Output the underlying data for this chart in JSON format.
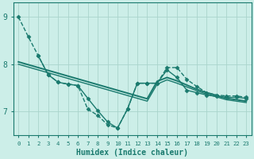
{
  "background_color": "#cceee8",
  "grid_color": "#aad4cc",
  "line_color": "#1a7a6e",
  "xlabel": "Humidex (Indice chaleur)",
  "xlim": [
    -0.5,
    23.5
  ],
  "ylim": [
    6.5,
    9.3
  ],
  "yticks": [
    7,
    8,
    9
  ],
  "xticks": [
    0,
    1,
    2,
    3,
    4,
    5,
    6,
    7,
    8,
    9,
    10,
    11,
    12,
    13,
    14,
    15,
    16,
    17,
    18,
    19,
    20,
    21,
    22,
    23
  ],
  "series": [
    {
      "x": [
        0,
        1,
        2,
        3,
        4,
        5,
        6,
        7,
        8,
        9,
        10,
        11,
        12,
        13,
        14,
        15,
        16,
        17,
        18,
        19,
        20,
        21,
        22,
        23
      ],
      "y": [
        9.0,
        8.58,
        8.18,
        7.78,
        7.62,
        7.58,
        7.55,
        7.05,
        6.92,
        6.72,
        6.65,
        7.05,
        7.6,
        7.6,
        7.6,
        7.93,
        7.93,
        7.68,
        7.53,
        7.4,
        7.35,
        7.33,
        7.33,
        7.3
      ],
      "marker": "D",
      "markersize": 2.5,
      "linewidth": 1.0,
      "linestyle": "--",
      "zorder": 4
    },
    {
      "x": [
        2,
        3,
        4,
        5,
        6,
        7,
        8,
        9,
        10,
        11,
        12,
        13,
        14,
        15,
        16,
        17,
        18,
        19,
        20,
        21,
        22,
        23
      ],
      "y": [
        8.18,
        7.78,
        7.62,
        7.58,
        7.55,
        7.28,
        7.02,
        6.78,
        6.65,
        7.05,
        7.6,
        7.6,
        7.6,
        7.88,
        7.72,
        7.45,
        7.4,
        7.35,
        7.32,
        7.3,
        7.3,
        7.28
      ],
      "marker": "D",
      "markersize": 2.5,
      "linewidth": 1.0,
      "linestyle": "-",
      "zorder": 4
    },
    {
      "x": [
        0,
        1,
        2,
        3,
        4,
        5,
        6,
        7,
        8,
        9,
        10,
        11,
        12,
        13,
        14,
        15,
        16,
        17,
        18,
        19,
        20,
        21,
        22,
        23
      ],
      "y": [
        8.05,
        7.99,
        7.93,
        7.87,
        7.81,
        7.75,
        7.69,
        7.63,
        7.57,
        7.51,
        7.45,
        7.39,
        7.33,
        7.27,
        7.64,
        7.72,
        7.65,
        7.56,
        7.47,
        7.4,
        7.34,
        7.28,
        7.25,
        7.22
      ],
      "marker": null,
      "markersize": 0,
      "linewidth": 1.4,
      "linestyle": "-",
      "zorder": 3
    },
    {
      "x": [
        0,
        1,
        2,
        3,
        4,
        5,
        6,
        7,
        8,
        9,
        10,
        11,
        12,
        13,
        14,
        15,
        16,
        17,
        18,
        19,
        20,
        21,
        22,
        23
      ],
      "y": [
        8.0,
        7.94,
        7.88,
        7.82,
        7.76,
        7.7,
        7.64,
        7.58,
        7.52,
        7.46,
        7.4,
        7.34,
        7.28,
        7.22,
        7.58,
        7.67,
        7.6,
        7.52,
        7.44,
        7.37,
        7.31,
        7.25,
        7.22,
        7.19
      ],
      "marker": null,
      "markersize": 0,
      "linewidth": 1.0,
      "linestyle": "-",
      "zorder": 3
    }
  ]
}
